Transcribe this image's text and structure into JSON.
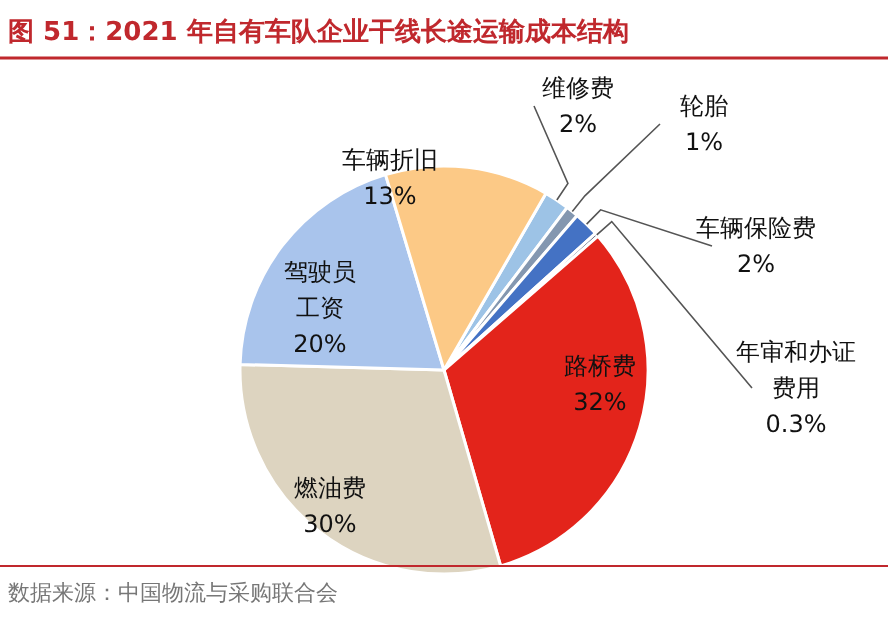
{
  "chart_data": {
    "type": "pie",
    "title": "图 51：2021 年自有车队企业干线长途运输成本结构",
    "categories": [
      "维修费",
      "轮胎",
      "车辆保险费",
      "年审和办证费用",
      "路桥费",
      "燃油费",
      "驾驶员工资",
      "车辆折旧"
    ],
    "values": [
      2,
      1,
      2,
      0.3,
      32,
      30,
      20,
      13
    ],
    "value_labels": [
      "2%",
      "1%",
      "2%",
      "0.3%",
      "32%",
      "30%",
      "20%",
      "13%"
    ],
    "colors": [
      "#9dc3e6",
      "#8497b0",
      "#4472c4",
      "#2f3e5c",
      "#e3241b",
      "#ddd4c0",
      "#a9c4ec",
      "#fcc986"
    ],
    "annotations": [
      "数据来源：中国物流与采购联合会"
    ]
  }
}
